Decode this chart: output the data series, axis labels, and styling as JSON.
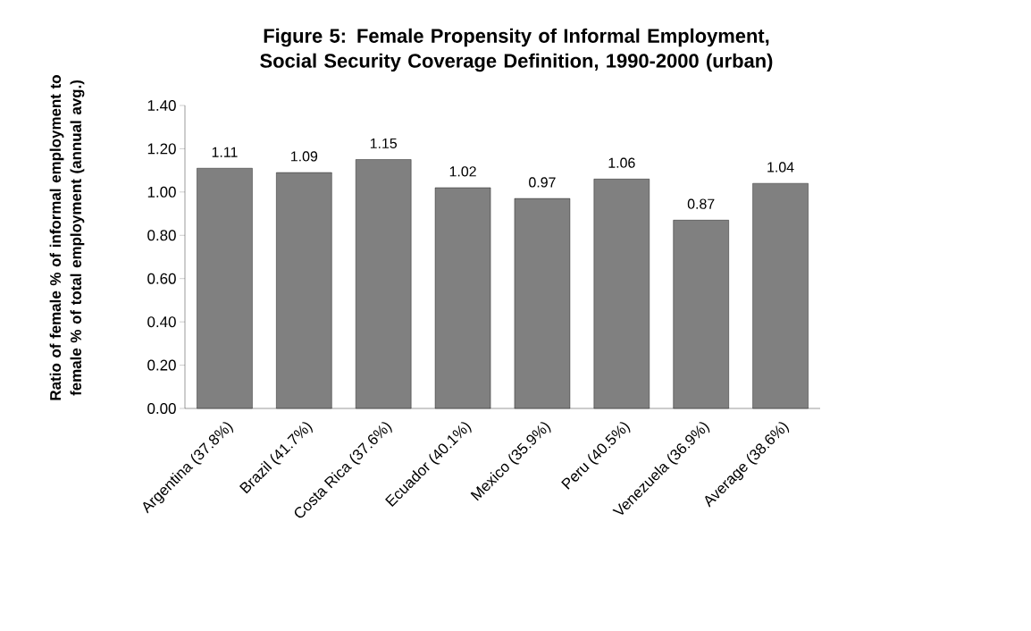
{
  "chart_data": {
    "type": "bar",
    "title": "Figure 5: Female Propensity of Informal Employment, Social Security Coverage Definition, 1990-2000 (urban)",
    "ylabel": "Ratio of female % of informal employment to female % of total employment (annual avg.)",
    "categories": [
      "Argentina (37.8%)",
      "Brazil (41.7%)",
      "Costa Rica (37.6%)",
      "Ecuador (40.1%)",
      "Mexico (35.9%)",
      "Peru (40.5%)",
      "Venezuela (36.9%)",
      "Average (38.6%)"
    ],
    "values": [
      1.11,
      1.09,
      1.15,
      1.02,
      0.97,
      1.06,
      0.87,
      1.04
    ],
    "color": "#808080",
    "ylim": [
      0,
      1.4
    ],
    "yticks": [
      {
        "value": 0,
        "label": "0.00"
      },
      {
        "value": 0.2,
        "label": "0.20"
      },
      {
        "value": 0.4,
        "label": "0.40"
      },
      {
        "value": 0.6,
        "label": "0.60"
      },
      {
        "value": 0.8,
        "label": "0.80"
      },
      {
        "value": 1.0,
        "label": "1.00"
      },
      {
        "value": 1.2,
        "label": "1.20"
      },
      {
        "value": 1.4,
        "label": "1.40"
      }
    ],
    "data_labels": true
  }
}
